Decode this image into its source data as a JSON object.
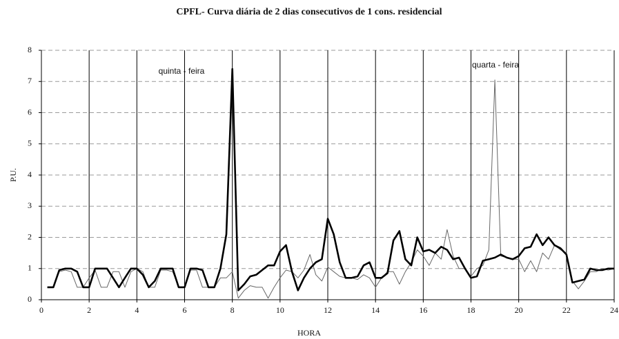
{
  "chart_data": {
    "type": "line",
    "title": "CPFL- Curva diária de 2 dias consecutivos de 1 cons. residencial",
    "x_label": "HORA",
    "y_label": "P.U.",
    "annotations": [
      "quinta - feira",
      "quarta - feira"
    ],
    "x": [
      0.25,
      0.5,
      0.75,
      1,
      1.25,
      1.5,
      1.75,
      2,
      2.25,
      2.5,
      2.75,
      3,
      3.25,
      3.5,
      3.75,
      4,
      4.25,
      4.5,
      4.75,
      5,
      5.25,
      5.5,
      5.75,
      6,
      6.25,
      6.5,
      6.75,
      7,
      7.25,
      7.5,
      7.75,
      8,
      8.25,
      8.5,
      8.75,
      9,
      9.25,
      9.5,
      9.75,
      10,
      10.25,
      10.5,
      10.75,
      11,
      11.25,
      11.5,
      11.75,
      12,
      12.25,
      12.5,
      12.75,
      13,
      13.25,
      13.5,
      13.75,
      14,
      14.25,
      14.5,
      14.75,
      15,
      15.25,
      15.5,
      15.75,
      16,
      16.25,
      16.5,
      16.75,
      17,
      17.25,
      17.5,
      17.75,
      18,
      18.25,
      18.5,
      18.75,
      19,
      19.25,
      19.5,
      19.75,
      20,
      20.25,
      20.5,
      20.75,
      21,
      21.25,
      21.5,
      21.75,
      22,
      22.25,
      22.5,
      22.75,
      23,
      23.25,
      23.5,
      23.75,
      24
    ],
    "series": [
      {
        "name": "quinta - feira",
        "color": "#000000",
        "width": 2.6,
        "values": [
          0.4,
          0.4,
          0.95,
          1,
          1,
          0.9,
          0.4,
          0.4,
          1,
          1,
          1,
          0.7,
          0.4,
          0.7,
          1,
          1,
          0.8,
          0.4,
          0.6,
          1,
          1,
          1,
          0.4,
          0.4,
          1,
          1,
          0.95,
          0.4,
          0.4,
          1,
          2.1,
          7.4,
          0.3,
          0.5,
          0.75,
          0.8,
          0.95,
          1.1,
          1.1,
          1.55,
          1.75,
          0.9,
          0.3,
          0.7,
          1,
          1.2,
          1.3,
          2.6,
          2.1,
          1.2,
          0.7,
          0.7,
          0.75,
          1.1,
          1.2,
          0.7,
          0.7,
          0.85,
          1.9,
          2.2,
          1.3,
          1.1,
          2,
          1.55,
          1.6,
          1.5,
          1.7,
          1.6,
          1.3,
          1.35,
          1,
          0.7,
          0.75,
          1.25,
          1.3,
          1.35,
          1.45,
          1.35,
          1.3,
          1.4,
          1.65,
          1.7,
          2.1,
          1.75,
          2,
          1.75,
          1.65,
          1.45,
          0.55,
          0.6,
          0.65,
          1,
          0.95,
          0.95,
          1,
          1
        ]
      },
      {
        "name": "quarta - feira",
        "color": "#666666",
        "width": 1,
        "values": [
          0.4,
          0.4,
          0.9,
          0.95,
          0.9,
          0.4,
          0.4,
          0.7,
          0.95,
          0.4,
          0.4,
          0.9,
          0.9,
          0.4,
          0.9,
          1,
          0.9,
          0.4,
          0.4,
          0.95,
          0.95,
          0.9,
          0.4,
          0.4,
          0.95,
          0.95,
          0.4,
          0.4,
          0.4,
          0.7,
          0.7,
          0.9,
          0.05,
          0.3,
          0.45,
          0.4,
          0.4,
          0.05,
          0.4,
          0.7,
          0.95,
          0.9,
          0.7,
          0.95,
          1.45,
          0.8,
          0.6,
          1.05,
          0.9,
          0.75,
          0.7,
          0.7,
          0.65,
          0.8,
          0.7,
          0.4,
          0.7,
          0.9,
          0.9,
          0.5,
          0.9,
          1.2,
          1.6,
          1.4,
          1.1,
          1.5,
          1.3,
          2.25,
          1.4,
          1,
          1,
          0.75,
          1,
          1.1,
          1.6,
          7.05,
          1.4,
          1.35,
          1.3,
          1.3,
          0.9,
          1.25,
          0.9,
          1.5,
          1.3,
          1.75,
          1.6,
          1.5,
          0.6,
          0.35,
          0.6,
          0.9,
          0.9,
          1,
          0.95,
          1
        ]
      }
    ],
    "xlim": [
      0,
      24
    ],
    "xticks": [
      0,
      2,
      4,
      6,
      8,
      10,
      12,
      14,
      16,
      18,
      20,
      22,
      24
    ],
    "ylim": [
      0,
      8
    ],
    "yticks": [
      0,
      1,
      2,
      3,
      4,
      5,
      6,
      7,
      8
    ],
    "grid": true
  }
}
